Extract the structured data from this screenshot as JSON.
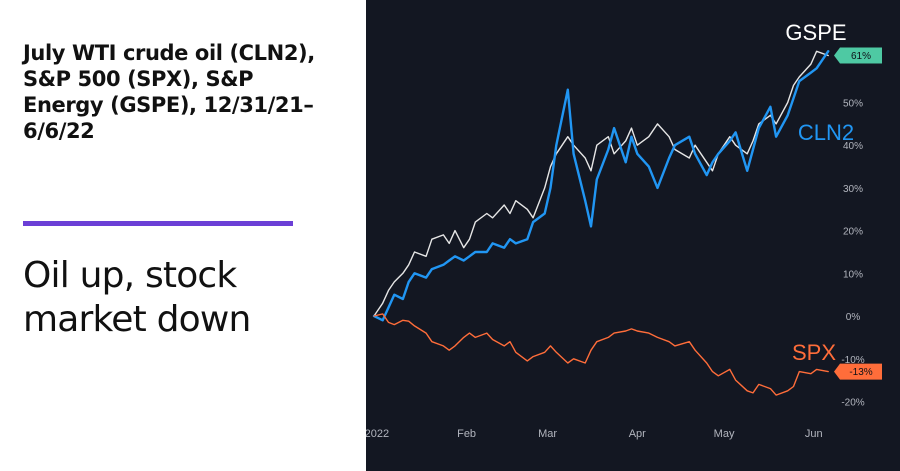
{
  "heading": {
    "title": "July WTI crude oil (CLN2), S&P 500 (SPX), S&P Energy (GSPE), 12/31/21–6/6/22",
    "subtitle": "Oil up, stock market down"
  },
  "chart_data": {
    "type": "line",
    "x_ticks": [
      "2022",
      "Feb",
      "Mar",
      "Apr",
      "May",
      "Jun"
    ],
    "x_tick_dates": [
      "2022-01-01",
      "2022-02-01",
      "2022-03-01",
      "2022-04-01",
      "2022-05-01",
      "2022-06-01"
    ],
    "y_ticks": [
      {
        "value": 50,
        "label": "50%"
      },
      {
        "value": 40,
        "label": "40%"
      },
      {
        "value": 30,
        "label": "30%"
      },
      {
        "value": 20,
        "label": "20%"
      },
      {
        "value": 10,
        "label": "10%"
      },
      {
        "value": 0,
        "label": "0%"
      },
      {
        "value": -10,
        "label": "-10%"
      },
      {
        "value": -20,
        "label": "-20%"
      }
    ],
    "xlim": [
      "2021-12-31",
      "2022-06-08"
    ],
    "ylim": [
      -22,
      74
    ],
    "grid": false,
    "colors": {
      "background": "#131722",
      "axis_text": "#b2b5be"
    },
    "series": [
      {
        "name": "GSPE",
        "color": "#e6e6e6",
        "end_badge": "61%",
        "badge_color": "#4ec9a3",
        "points": [
          [
            "2021-12-31",
            0
          ],
          [
            "2022-01-03",
            3
          ],
          [
            "2022-01-05",
            6
          ],
          [
            "2022-01-07",
            8
          ],
          [
            "2022-01-10",
            10
          ],
          [
            "2022-01-12",
            12
          ],
          [
            "2022-01-14",
            15
          ],
          [
            "2022-01-18",
            14
          ],
          [
            "2022-01-20",
            18
          ],
          [
            "2022-01-24",
            19
          ],
          [
            "2022-01-26",
            17
          ],
          [
            "2022-01-28",
            20
          ],
          [
            "2022-01-31",
            16
          ],
          [
            "2022-02-02",
            18
          ],
          [
            "2022-02-04",
            22
          ],
          [
            "2022-02-08",
            24
          ],
          [
            "2022-02-10",
            23
          ],
          [
            "2022-02-14",
            26
          ],
          [
            "2022-02-16",
            24
          ],
          [
            "2022-02-18",
            27
          ],
          [
            "2022-02-22",
            25
          ],
          [
            "2022-02-24",
            23
          ],
          [
            "2022-02-28",
            30
          ],
          [
            "2022-03-02",
            35
          ],
          [
            "2022-03-04",
            38
          ],
          [
            "2022-03-08",
            42
          ],
          [
            "2022-03-10",
            40
          ],
          [
            "2022-03-14",
            37
          ],
          [
            "2022-03-16",
            34
          ],
          [
            "2022-03-18",
            40
          ],
          [
            "2022-03-22",
            42
          ],
          [
            "2022-03-24",
            38
          ],
          [
            "2022-03-28",
            41
          ],
          [
            "2022-03-30",
            44
          ],
          [
            "2022-04-01",
            40
          ],
          [
            "2022-04-05",
            42
          ],
          [
            "2022-04-08",
            45
          ],
          [
            "2022-04-12",
            42
          ],
          [
            "2022-04-14",
            39
          ],
          [
            "2022-04-19",
            37
          ],
          [
            "2022-04-21",
            40
          ],
          [
            "2022-04-25",
            36
          ],
          [
            "2022-04-27",
            34
          ],
          [
            "2022-04-29",
            38
          ],
          [
            "2022-05-03",
            42
          ],
          [
            "2022-05-05",
            40
          ],
          [
            "2022-05-09",
            38
          ],
          [
            "2022-05-11",
            41
          ],
          [
            "2022-05-13",
            45
          ],
          [
            "2022-05-17",
            47
          ],
          [
            "2022-05-19",
            45
          ],
          [
            "2022-05-23",
            50
          ],
          [
            "2022-05-25",
            54
          ],
          [
            "2022-05-27",
            56
          ],
          [
            "2022-05-31",
            59
          ],
          [
            "2022-06-02",
            62
          ],
          [
            "2022-06-06",
            61
          ]
        ]
      },
      {
        "name": "CLN2",
        "color": "#2196f3",
        "points": [
          [
            "2021-12-31",
            0
          ],
          [
            "2022-01-03",
            -1
          ],
          [
            "2022-01-05",
            2
          ],
          [
            "2022-01-07",
            5
          ],
          [
            "2022-01-10",
            4
          ],
          [
            "2022-01-12",
            8
          ],
          [
            "2022-01-14",
            10
          ],
          [
            "2022-01-18",
            9
          ],
          [
            "2022-01-20",
            11
          ],
          [
            "2022-01-24",
            12
          ],
          [
            "2022-01-26",
            13
          ],
          [
            "2022-01-28",
            14
          ],
          [
            "2022-01-31",
            13
          ],
          [
            "2022-02-02",
            14
          ],
          [
            "2022-02-04",
            15
          ],
          [
            "2022-02-08",
            15
          ],
          [
            "2022-02-10",
            17
          ],
          [
            "2022-02-14",
            16
          ],
          [
            "2022-02-16",
            18
          ],
          [
            "2022-02-18",
            17
          ],
          [
            "2022-02-22",
            18
          ],
          [
            "2022-02-24",
            22
          ],
          [
            "2022-02-28",
            24
          ],
          [
            "2022-03-02",
            30
          ],
          [
            "2022-03-04",
            40
          ],
          [
            "2022-03-08",
            53
          ],
          [
            "2022-03-10",
            38
          ],
          [
            "2022-03-14",
            27
          ],
          [
            "2022-03-16",
            21
          ],
          [
            "2022-03-18",
            32
          ],
          [
            "2022-03-22",
            39
          ],
          [
            "2022-03-24",
            44
          ],
          [
            "2022-03-28",
            36
          ],
          [
            "2022-03-30",
            42
          ],
          [
            "2022-04-01",
            38
          ],
          [
            "2022-04-05",
            35
          ],
          [
            "2022-04-08",
            30
          ],
          [
            "2022-04-12",
            37
          ],
          [
            "2022-04-14",
            40
          ],
          [
            "2022-04-19",
            42
          ],
          [
            "2022-04-21",
            38
          ],
          [
            "2022-04-25",
            33
          ],
          [
            "2022-04-27",
            36
          ],
          [
            "2022-04-29",
            38
          ],
          [
            "2022-05-03",
            41
          ],
          [
            "2022-05-05",
            43
          ],
          [
            "2022-05-09",
            34
          ],
          [
            "2022-05-11",
            39
          ],
          [
            "2022-05-13",
            44
          ],
          [
            "2022-05-17",
            49
          ],
          [
            "2022-05-19",
            42
          ],
          [
            "2022-05-23",
            47
          ],
          [
            "2022-05-25",
            51
          ],
          [
            "2022-05-27",
            55
          ],
          [
            "2022-05-31",
            57
          ],
          [
            "2022-06-02",
            58
          ],
          [
            "2022-06-06",
            62
          ]
        ]
      },
      {
        "name": "SPX",
        "color": "#ff6d3a",
        "end_badge": "-13%",
        "badge_color": "#ff6d3a",
        "points": [
          [
            "2021-12-31",
            0
          ],
          [
            "2022-01-03",
            0.5
          ],
          [
            "2022-01-05",
            -1.5
          ],
          [
            "2022-01-07",
            -2
          ],
          [
            "2022-01-10",
            -1
          ],
          [
            "2022-01-12",
            -1.2
          ],
          [
            "2022-01-14",
            -2.3
          ],
          [
            "2022-01-18",
            -4
          ],
          [
            "2022-01-20",
            -6
          ],
          [
            "2022-01-24",
            -7
          ],
          [
            "2022-01-26",
            -8
          ],
          [
            "2022-01-28",
            -7
          ],
          [
            "2022-01-31",
            -5
          ],
          [
            "2022-02-02",
            -4
          ],
          [
            "2022-02-04",
            -5
          ],
          [
            "2022-02-08",
            -4
          ],
          [
            "2022-02-10",
            -5.5
          ],
          [
            "2022-02-14",
            -7
          ],
          [
            "2022-02-16",
            -6
          ],
          [
            "2022-02-18",
            -8.5
          ],
          [
            "2022-02-22",
            -10.5
          ],
          [
            "2022-02-24",
            -9.5
          ],
          [
            "2022-02-28",
            -8.5
          ],
          [
            "2022-03-02",
            -7
          ],
          [
            "2022-03-04",
            -8.5
          ],
          [
            "2022-03-08",
            -11
          ],
          [
            "2022-03-10",
            -10
          ],
          [
            "2022-03-14",
            -11
          ],
          [
            "2022-03-16",
            -8
          ],
          [
            "2022-03-18",
            -6
          ],
          [
            "2022-03-22",
            -5
          ],
          [
            "2022-03-24",
            -4
          ],
          [
            "2022-03-28",
            -3.5
          ],
          [
            "2022-03-30",
            -3
          ],
          [
            "2022-04-01",
            -3.5
          ],
          [
            "2022-04-05",
            -4
          ],
          [
            "2022-04-08",
            -5
          ],
          [
            "2022-04-12",
            -6
          ],
          [
            "2022-04-14",
            -7
          ],
          [
            "2022-04-19",
            -6
          ],
          [
            "2022-04-21",
            -8
          ],
          [
            "2022-04-25",
            -11
          ],
          [
            "2022-04-27",
            -13
          ],
          [
            "2022-04-29",
            -14
          ],
          [
            "2022-05-03",
            -12.5
          ],
          [
            "2022-05-05",
            -15
          ],
          [
            "2022-05-09",
            -17.5
          ],
          [
            "2022-05-11",
            -18
          ],
          [
            "2022-05-13",
            -16
          ],
          [
            "2022-05-17",
            -17
          ],
          [
            "2022-05-19",
            -18.5
          ],
          [
            "2022-05-23",
            -17.5
          ],
          [
            "2022-05-25",
            -16.5
          ],
          [
            "2022-05-27",
            -13
          ],
          [
            "2022-05-31",
            -13.5
          ],
          [
            "2022-06-02",
            -12.5
          ],
          [
            "2022-06-06",
            -13
          ]
        ]
      }
    ]
  }
}
